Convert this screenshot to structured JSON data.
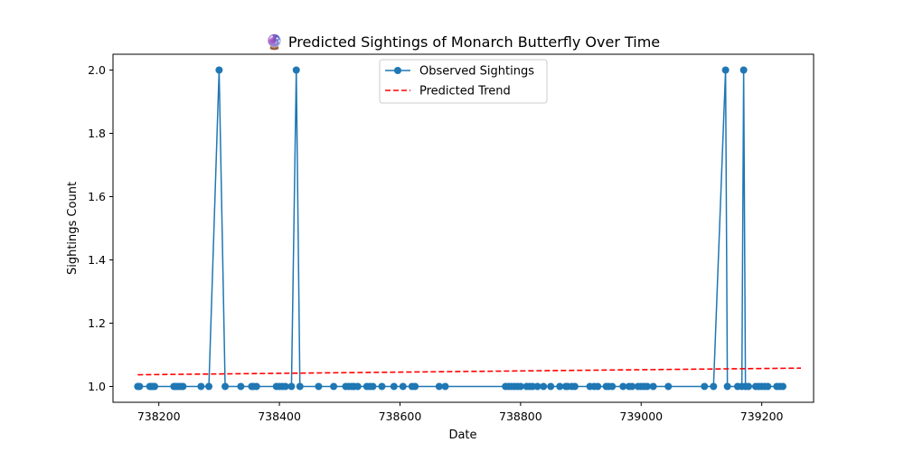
{
  "chart_data": {
    "type": "line",
    "title": "🔮 Predicted Sightings of Monarch Butterfly Over Time",
    "xlabel": "Date",
    "ylabel": "Sightings Count",
    "xlim": [
      738124,
      739286
    ],
    "ylim": [
      0.95,
      2.05
    ],
    "x_ticks": [
      738200,
      738400,
      738600,
      738800,
      739000,
      739200
    ],
    "x_tick_labels": [
      "738200",
      "738400",
      "738600",
      "738800",
      "739000",
      "739200"
    ],
    "y_ticks": [
      1.0,
      1.2,
      1.4,
      1.6,
      1.8,
      2.0
    ],
    "y_tick_labels": [
      "1.0",
      "1.2",
      "1.4",
      "1.6",
      "1.8",
      "2.0"
    ],
    "grid": false,
    "legend_position": "top-center",
    "series": [
      {
        "name": "Observed Sightings",
        "color": "#1f77b4",
        "style": "solid",
        "marker": "circle",
        "x": [
          738165,
          738168,
          738185,
          738188,
          738190,
          738193,
          738225,
          738228,
          738232,
          738236,
          738240,
          738270,
          738283,
          738300,
          738310,
          738336,
          738354,
          738357,
          738362,
          738395,
          738400,
          738405,
          738410,
          738420,
          738428,
          738434,
          738465,
          738490,
          738510,
          738515,
          738520,
          738524,
          738530,
          738545,
          738550,
          738555,
          738570,
          738590,
          738605,
          738620,
          738625,
          738665,
          738675,
          738775,
          738780,
          738785,
          738790,
          738795,
          738800,
          738810,
          738815,
          738820,
          738828,
          738838,
          738850,
          738865,
          738875,
          738878,
          738885,
          738890,
          738915,
          738922,
          738928,
          738942,
          738946,
          738952,
          738970,
          738980,
          738985,
          738995,
          739000,
          739005,
          739010,
          739020,
          739045,
          739105,
          739120,
          739140,
          739143,
          739160,
          739167,
          739170,
          739173,
          739178,
          739190,
          739195,
          739200,
          739205,
          739210,
          739225,
          739230,
          739235
        ],
        "y": [
          1,
          1,
          1,
          1,
          1,
          1,
          1,
          1,
          1,
          1,
          1,
          1,
          1,
          2,
          1,
          1,
          1,
          1,
          1,
          1,
          1,
          1,
          1,
          1,
          2,
          1,
          1,
          1,
          1,
          1,
          1,
          1,
          1,
          1,
          1,
          1,
          1,
          1,
          1,
          1,
          1,
          1,
          1,
          1,
          1,
          1,
          1,
          1,
          1,
          1,
          1,
          1,
          1,
          1,
          1,
          1,
          1,
          1,
          1,
          1,
          1,
          1,
          1,
          1,
          1,
          1,
          1,
          1,
          1,
          1,
          1,
          1,
          1,
          1,
          1,
          1,
          1,
          2,
          1,
          1,
          1,
          2,
          1,
          1,
          1,
          1,
          1,
          1,
          1,
          1,
          1,
          1
        ]
      },
      {
        "name": "Predicted Trend",
        "color": "#ff0000",
        "style": "dashed",
        "marker": "none",
        "x": [
          738165,
          739265
        ],
        "y": [
          1.037,
          1.058
        ]
      }
    ]
  }
}
